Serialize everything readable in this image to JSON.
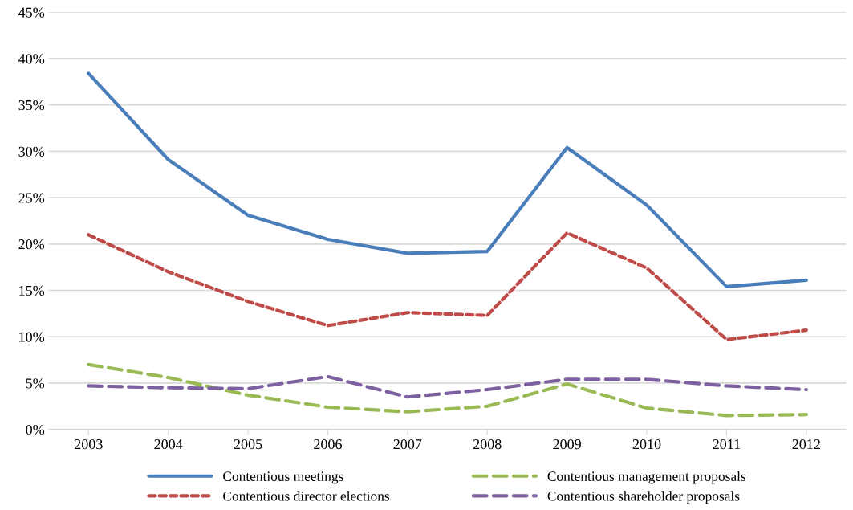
{
  "chart_data": {
    "type": "line",
    "categories": [
      "2003",
      "2004",
      "2005",
      "2006",
      "2007",
      "2008",
      "2009",
      "2010",
      "2011",
      "2012"
    ],
    "series": [
      {
        "name": "Contentious meetings",
        "color": "#4a7ebb",
        "line_style": "solid",
        "values": [
          38.4,
          29.1,
          23.1,
          20.5,
          19.0,
          19.2,
          30.4,
          24.2,
          15.4,
          16.1
        ]
      },
      {
        "name": "Contentious director elections",
        "color": "#be4b48",
        "line_style": "dotted",
        "values": [
          21.0,
          17.0,
          13.8,
          11.2,
          12.6,
          12.3,
          21.2,
          17.4,
          9.7,
          10.7
        ]
      },
      {
        "name": "Contentious management proposals",
        "color": "#98b954",
        "line_style": "dashed",
        "values": [
          7.0,
          5.6,
          3.7,
          2.4,
          1.9,
          2.5,
          4.9,
          2.3,
          1.5,
          1.6
        ]
      },
      {
        "name": "Contentious shareholder proposals",
        "color": "#7d60a0",
        "line_style": "dashed",
        "values": [
          4.7,
          4.5,
          4.4,
          5.7,
          3.5,
          4.3,
          5.4,
          5.4,
          4.7,
          4.3
        ]
      }
    ],
    "ylim": [
      0,
      45
    ],
    "yticks": [
      {
        "value": 0,
        "label": "0%"
      },
      {
        "value": 5,
        "label": "5%"
      },
      {
        "value": 10,
        "label": "10%"
      },
      {
        "value": 15,
        "label": "15%"
      },
      {
        "value": 20,
        "label": "20%"
      },
      {
        "value": 25,
        "label": "25%"
      },
      {
        "value": 30,
        "label": "30%"
      },
      {
        "value": 35,
        "label": "35%"
      },
      {
        "value": 40,
        "label": "40%"
      },
      {
        "value": 45,
        "label": "45%"
      }
    ],
    "grid": "y",
    "legend": "bottom",
    "marker": "none"
  }
}
